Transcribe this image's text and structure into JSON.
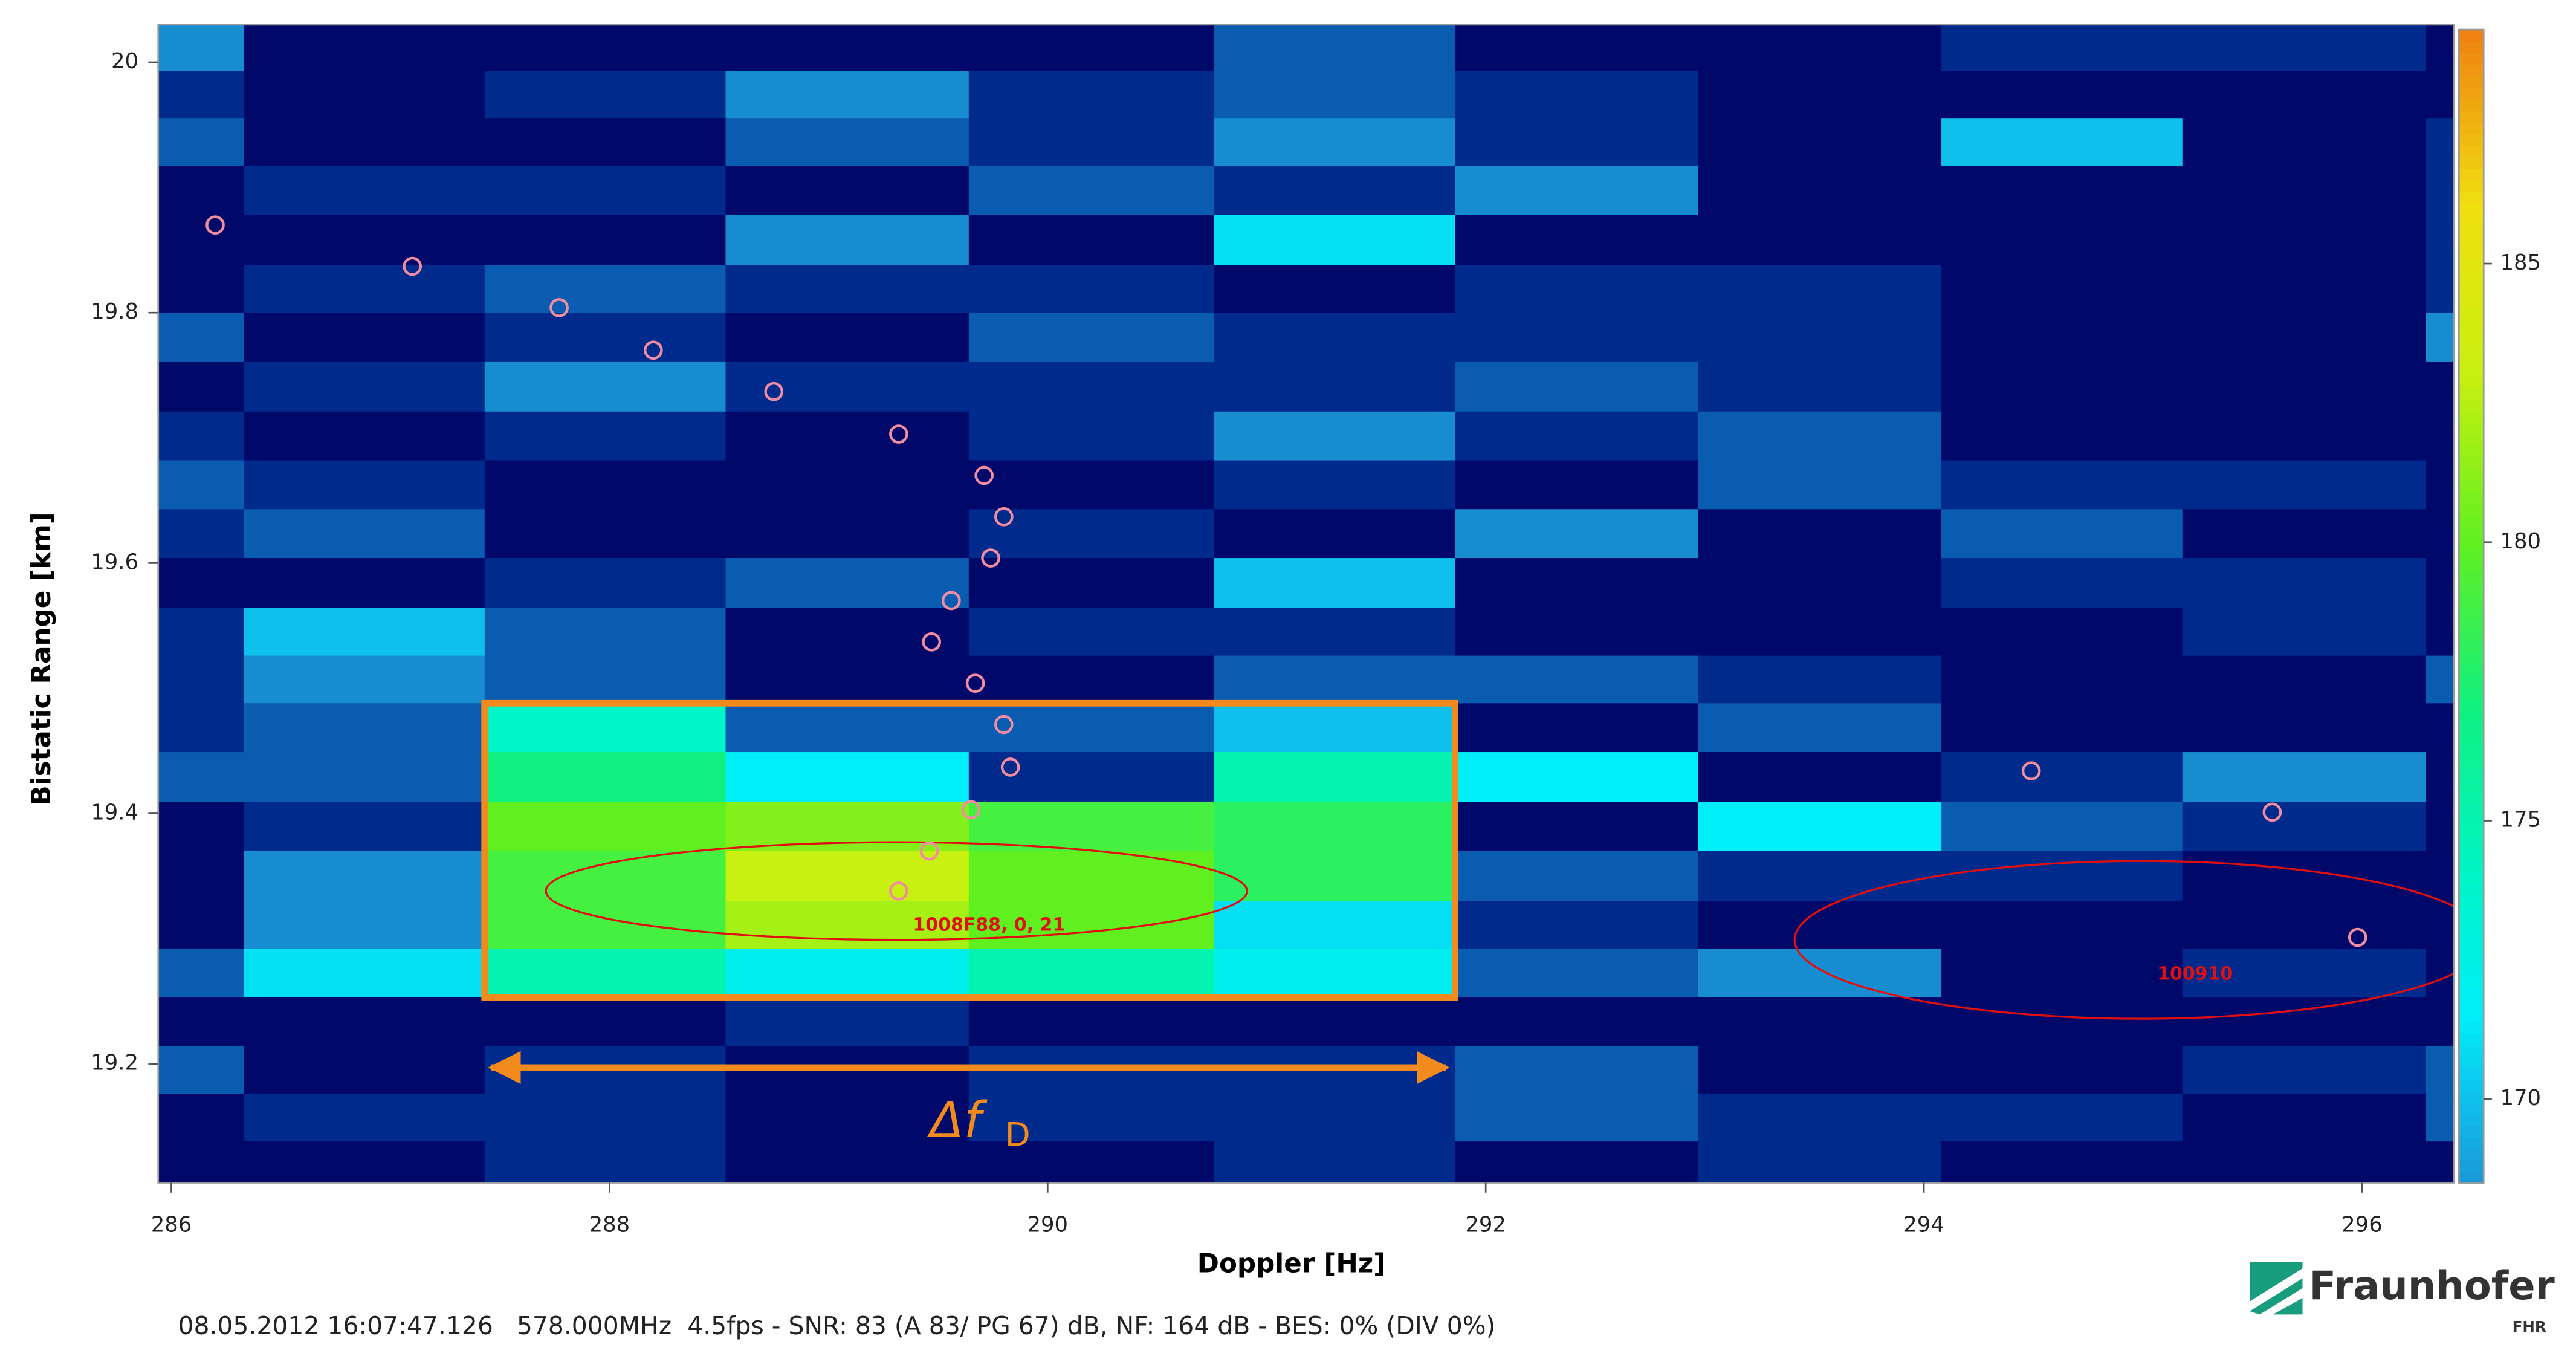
{
  "chart_data": {
    "type": "heatmap",
    "x_label": "Doppler [Hz]",
    "y_label": "Bistatic Range [km]",
    "xlim": [
      285.94,
      296.42
    ],
    "ylim": [
      19.105,
      20.03
    ],
    "xticks": [
      286,
      288,
      290,
      292,
      294,
      296
    ],
    "yticks": [
      19.2,
      19.4,
      19.6,
      19.8,
      20
    ],
    "x_edges": [
      285.94,
      286.33,
      287.43,
      288.53,
      289.64,
      290.76,
      291.86,
      292.97,
      294.08,
      295.18,
      296.29,
      296.42
    ],
    "y_edges": [
      20.03,
      19.993,
      19.955,
      19.917,
      19.878,
      19.838,
      19.8,
      19.761,
      19.721,
      19.682,
      19.643,
      19.604,
      19.564,
      19.526,
      19.488,
      19.449,
      19.409,
      19.37,
      19.33,
      19.292,
      19.253,
      19.214,
      19.176,
      19.138,
      19.105
    ],
    "z": [
      [
        168,
        160,
        160,
        160,
        160,
        166,
        160,
        160,
        163,
        163,
        160
      ],
      [
        163,
        160,
        163,
        168,
        163,
        166,
        163,
        160,
        160,
        160,
        160
      ],
      [
        166,
        160,
        160,
        166,
        163,
        168,
        163,
        160,
        170,
        160,
        163
      ],
      [
        160,
        163,
        163,
        160,
        166,
        163,
        168,
        160,
        160,
        160,
        163
      ],
      [
        160,
        160,
        160,
        168,
        160,
        171,
        160,
        160,
        160,
        160,
        163
      ],
      [
        160,
        163,
        166,
        163,
        163,
        160,
        163,
        163,
        160,
        160,
        163
      ],
      [
        166,
        160,
        163,
        160,
        166,
        163,
        163,
        163,
        160,
        160,
        168
      ],
      [
        160,
        163,
        168,
        163,
        163,
        163,
        166,
        163,
        160,
        160,
        160
      ],
      [
        163,
        160,
        163,
        160,
        163,
        168,
        163,
        166,
        160,
        160,
        160
      ],
      [
        166,
        163,
        160,
        160,
        160,
        163,
        160,
        166,
        163,
        163,
        160
      ],
      [
        163,
        166,
        160,
        160,
        163,
        160,
        168,
        160,
        166,
        160,
        160
      ],
      [
        160,
        160,
        163,
        166,
        160,
        170,
        160,
        160,
        163,
        163,
        160
      ],
      [
        163,
        170,
        166,
        160,
        163,
        163,
        160,
        160,
        160,
        163,
        160
      ],
      [
        163,
        168,
        166,
        160,
        160,
        166,
        166,
        163,
        160,
        160,
        166
      ],
      [
        163,
        166,
        174,
        166,
        166,
        170,
        160,
        166,
        160,
        160,
        160
      ],
      [
        166,
        166,
        177,
        171.5,
        163,
        175,
        171.5,
        160,
        163,
        168,
        160
      ],
      [
        160,
        163,
        180,
        181,
        179,
        178,
        160,
        171.5,
        166,
        163,
        160
      ],
      [
        160,
        168,
        179,
        183,
        180,
        178,
        166,
        163,
        163,
        160,
        160
      ],
      [
        160,
        168,
        179,
        182,
        180,
        171,
        163,
        160,
        160,
        160,
        160
      ],
      [
        166,
        171,
        175,
        172,
        175,
        172,
        166,
        168,
        160,
        163,
        160
      ],
      [
        160,
        160,
        160,
        163,
        160,
        160,
        160,
        160,
        160,
        160,
        160
      ],
      [
        166,
        160,
        163,
        160,
        163,
        163,
        166,
        160,
        160,
        163,
        166
      ],
      [
        160,
        163,
        163,
        160,
        163,
        163,
        166,
        163,
        163,
        160,
        166
      ],
      [
        160,
        160,
        163,
        160,
        160,
        163,
        160,
        163,
        160,
        160,
        160
      ]
    ],
    "clim": [
      168.5,
      189.2
    ],
    "cticks": [
      170,
      175,
      180,
      185
    ],
    "colormap": [
      {
        "value": 160,
        "color": "#00086a"
      },
      {
        "value": 163,
        "color": "#002a8c"
      },
      {
        "value": 166,
        "color": "#0a5cb0"
      },
      {
        "value": 168.5,
        "color": "#1a98d8"
      },
      {
        "value": 170,
        "color": "#10c0ec"
      },
      {
        "value": 171.5,
        "color": "#00eef8"
      },
      {
        "value": 174,
        "color": "#00f5c8"
      },
      {
        "value": 177,
        "color": "#10f080"
      },
      {
        "value": 180,
        "color": "#60f020"
      },
      {
        "value": 183,
        "color": "#c8f010"
      },
      {
        "value": 186,
        "color": "#f0e010"
      },
      {
        "value": 189.2,
        "color": "#f08010"
      }
    ],
    "detections": {
      "color": "#f28ca0",
      "x": [
        286.2,
        287.1,
        287.77,
        288.2,
        288.75,
        289.32,
        289.71,
        289.8,
        289.74,
        289.56,
        289.47,
        289.67,
        289.8,
        289.83,
        289.65,
        289.46,
        289.32,
        294.49,
        295.59,
        295.98
      ],
      "y": [
        19.87,
        19.837,
        19.804,
        19.77,
        19.737,
        19.703,
        19.67,
        19.637,
        19.604,
        19.57,
        19.537,
        19.504,
        19.471,
        19.437,
        19.403,
        19.37,
        19.338,
        19.434,
        19.401,
        19.301
      ]
    },
    "tracks": [
      {
        "label": "1008F88, 0, 21",
        "color": "#e01010",
        "cx": 289.31,
        "cy": 19.338,
        "rx": 1.6,
        "ry": 0.039
      },
      {
        "label": "100910",
        "color": "#e01010",
        "cx": 294.99,
        "cy": 19.299,
        "rx": 1.58,
        "ry": 0.063
      }
    ],
    "highlight": {
      "color": "#f28a1e",
      "x": [
        287.43,
        291.86
      ],
      "y": [
        19.253,
        19.488
      ],
      "arrow_y": 19.197,
      "arrow_x": [
        287.46,
        291.82
      ],
      "label": "Δf",
      "label_sub": "D"
    },
    "status": "08.05.2012 16:07:47.126   578.000MHz  4.5fps - SNR: 83 (A 83/ PG 67) dB, NF: 164 dB - BES: 0% (DIV 0%)",
    "logo": {
      "name": "Fraunhofer",
      "sub": "FHR"
    }
  }
}
